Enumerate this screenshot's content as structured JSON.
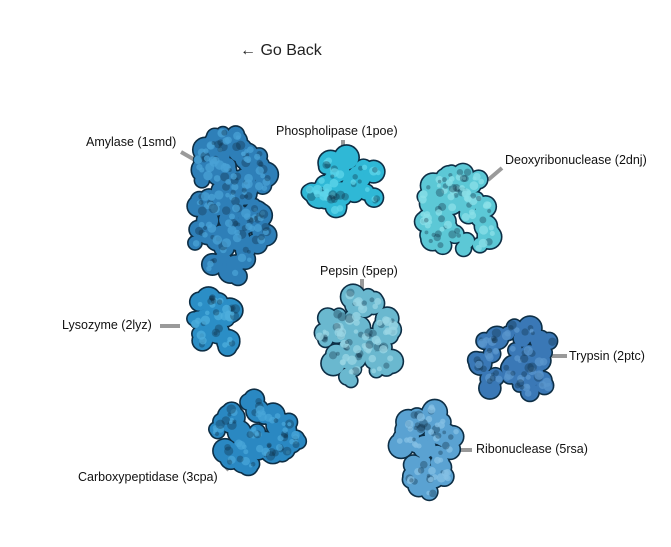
{
  "nav": {
    "back_label": "← Go Back"
  },
  "colors": {
    "leader": "#9a9a9a",
    "outline": "#0d2e45"
  },
  "enzymes": [
    {
      "id": "amylase",
      "label": "Amylase (1smd)",
      "color": "#2e7fb8",
      "light": "#4aa1d6"
    },
    {
      "id": "phospholipase",
      "label": "Phospholipase (1poe)",
      "color": "#2fb8d6",
      "light": "#5fd6ea"
    },
    {
      "id": "deoxyribonuclease",
      "label": "Deoxyribonuclease (2dnj)",
      "color": "#5cc8d6",
      "light": "#8be0e8"
    },
    {
      "id": "lysozyme",
      "label": "Lysozyme (2lyz)",
      "color": "#2b8ec6",
      "light": "#4eaedc"
    },
    {
      "id": "pepsin",
      "label": "Pepsin (5pep)",
      "color": "#6ab8cf",
      "light": "#9ad6e4"
    },
    {
      "id": "trypsin",
      "label": "Trypsin (2ptc)",
      "color": "#3a78b6",
      "light": "#5996cc"
    },
    {
      "id": "carboxypeptidase",
      "label": "Carboxypeptidase (3cpa)",
      "color": "#2a88c2",
      "light": "#48a6d8"
    },
    {
      "id": "ribonuclease",
      "label": "Ribonuclease (5rsa)",
      "color": "#5aa2d2",
      "light": "#86c0e4"
    }
  ]
}
